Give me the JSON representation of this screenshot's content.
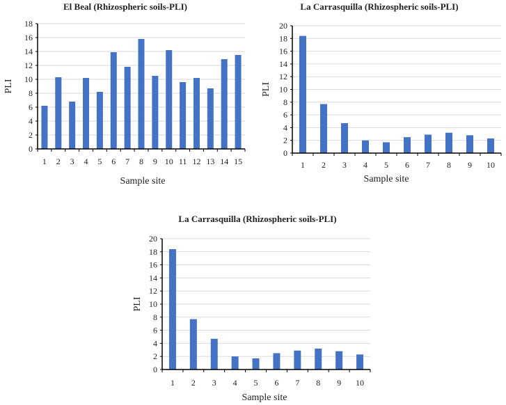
{
  "colors": {
    "bar": "#4472C4",
    "grid": "#d9d9d9",
    "axis": "#000000"
  },
  "chart_data": [
    {
      "type": "bar",
      "title": "El Beal (Rhizospheric soils-PLI)",
      "xlabel": "Sample site",
      "ylabel": "PLI",
      "categories": [
        "1",
        "2",
        "3",
        "4",
        "5",
        "6",
        "7",
        "8",
        "9",
        "10",
        "11",
        "12",
        "13",
        "14",
        "15"
      ],
      "values": [
        6.2,
        10.3,
        6.8,
        10.2,
        8.2,
        13.9,
        11.8,
        15.8,
        10.5,
        14.2,
        9.6,
        10.2,
        8.7,
        12.9,
        13.5
      ],
      "ylim": [
        0,
        18
      ],
      "yticks": [
        0,
        2,
        4,
        6,
        8,
        10,
        12,
        14,
        16,
        18
      ],
      "grid": true
    },
    {
      "type": "bar",
      "title": "La Carrasquilla (Rhizospheric soils-PLI)",
      "xlabel": "Sample site",
      "ylabel": "PLI",
      "categories": [
        "1",
        "2",
        "3",
        "4",
        "5",
        "6",
        "7",
        "8",
        "9",
        "10"
      ],
      "values": [
        18.4,
        7.7,
        4.7,
        2.0,
        1.7,
        2.5,
        2.9,
        3.2,
        2.8,
        2.3
      ],
      "ylim": [
        0,
        20
      ],
      "yticks": [
        0,
        2,
        4,
        6,
        8,
        10,
        12,
        14,
        16,
        18,
        20
      ],
      "grid": true
    },
    {
      "type": "bar",
      "title": "La Carrasquilla (Rhizospheric soils-PLI)",
      "xlabel": "Sample site",
      "ylabel": "PLI",
      "categories": [
        "1",
        "2",
        "3",
        "4",
        "5",
        "6",
        "7",
        "8",
        "9",
        "10"
      ],
      "values": [
        18.4,
        7.7,
        4.7,
        2.0,
        1.7,
        2.5,
        2.9,
        3.2,
        2.8,
        2.3
      ],
      "ylim": [
        0,
        20
      ],
      "yticks": [
        0,
        2,
        4,
        6,
        8,
        10,
        12,
        14,
        16,
        18,
        20
      ],
      "grid": true
    }
  ]
}
